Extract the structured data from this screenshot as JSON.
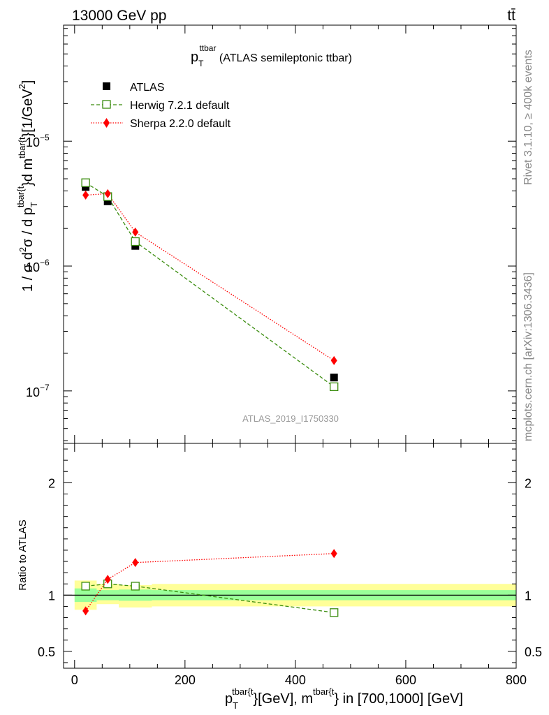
{
  "header": {
    "left": "13000 GeV pp",
    "right": "tt̄"
  },
  "side_labels": {
    "rivet": "Rivet 3.1.10, ≥ 400k events",
    "mcplots": "mcplots.cern.ch [arXiv:1306.3436]"
  },
  "colors": {
    "data": "#000000",
    "herwig": "#3a8c0e",
    "sherpa": "#ff0000",
    "band_inner": "#99ff99",
    "band_outer": "#ffff99",
    "watermark": "#999999",
    "side_text": "#888888"
  },
  "chart_data": {
    "type": "scatter",
    "title": {
      "main": "p",
      "sub": "T",
      "sup": "ttbar",
      "rest": " (ATLAS semileptonic ttbar)"
    },
    "analysis_tag": "ATLAS_2019_I1750330",
    "xlim": [
      -20,
      800
    ],
    "main_panel": {
      "yscale": "log",
      "ylim": [
        3.8e-08,
        8.5e-05
      ],
      "ylabel": {
        "prefix": "1 / σ d",
        "sup1": "2",
        "mid1": "σ /  d p",
        "sub1": "T",
        "sup2": "tbar{t",
        "mid2": "}d m",
        "sup3": "tbar{t",
        "mid3": "}[1/GeV",
        "sup4": "2",
        "end": "]"
      },
      "ytick_labels": [
        {
          "base": "10",
          "exp": "−5",
          "value": 1e-05
        },
        {
          "base": "10",
          "exp": "−6",
          "value": 1e-06
        },
        {
          "base": "10",
          "exp": "−7",
          "value": 1e-07
        }
      ]
    },
    "ratio_panel": {
      "ylabel": "Ratio to ATLAS",
      "ylim": [
        0.35,
        2.35
      ],
      "ytick_labels": [
        {
          "label": "0.5",
          "value": 0.5
        },
        {
          "label": "1",
          "value": 1.0
        },
        {
          "label": "2",
          "value": 2.0
        }
      ]
    },
    "x_ticks": [
      {
        "label": "0",
        "value": 0
      },
      {
        "label": "200",
        "value": 200
      },
      {
        "label": "400",
        "value": 400
      },
      {
        "label": "600",
        "value": 600
      },
      {
        "label": "800",
        "value": 800
      }
    ],
    "xlabel": {
      "p": "p",
      "sub": "T",
      "sup1": "tbar{t",
      "mid": "}[GeV], m",
      "sup2": "tbar{t",
      "end": "} in [700,1000] [GeV]"
    },
    "legend": {
      "placement": "top-left",
      "entries": [
        "ATLAS",
        "Herwig 7.2.1 default",
        "Sherpa 2.2.0 default"
      ]
    },
    "bins": [
      {
        "lo": 0,
        "hi": 40,
        "x": 20
      },
      {
        "lo": 40,
        "hi": 80,
        "x": 60
      },
      {
        "lo": 80,
        "hi": 140,
        "x": 110
      },
      {
        "lo": 140,
        "hi": 800,
        "x": 470
      }
    ],
    "series": [
      {
        "name": "ATLAS",
        "key": "data",
        "marker": "square",
        "x": [
          20,
          60,
          110,
          470
        ],
        "values": [
          4.3e-06,
          3.3e-06,
          1.45e-06,
          1.28e-07
        ]
      },
      {
        "name": "Herwig 7.2.1 default",
        "key": "herwig",
        "marker": "open-square",
        "line": "dashed",
        "x": [
          20,
          60,
          110,
          470
        ],
        "values": [
          4.65e-06,
          3.6e-06,
          1.57e-06,
          1.08e-07
        ]
      },
      {
        "name": "Sherpa 2.2.0 default",
        "key": "sherpa",
        "marker": "diamond",
        "line": "dotted",
        "x": [
          20,
          60,
          110,
          470
        ],
        "values": [
          3.7e-06,
          3.8e-06,
          1.87e-06,
          1.75e-07
        ]
      }
    ],
    "ratios": [
      {
        "key": "herwig",
        "x": [
          20,
          60,
          110,
          470
        ],
        "values": [
          1.08,
          1.1,
          1.08,
          0.845
        ]
      },
      {
        "key": "sherpa",
        "x": [
          20,
          60,
          110,
          470
        ],
        "values": [
          0.86,
          1.14,
          1.29,
          1.37
        ]
      }
    ],
    "uncertainty_band": {
      "inner": [
        {
          "lo": 0,
          "hi": 40,
          "down": 0.94,
          "up": 1.06
        },
        {
          "lo": 40,
          "hi": 80,
          "down": 0.955,
          "up": 1.045
        },
        {
          "lo": 80,
          "hi": 140,
          "down": 0.95,
          "up": 1.05
        },
        {
          "lo": 140,
          "hi": 800,
          "down": 0.955,
          "up": 1.045
        }
      ],
      "outer": [
        {
          "lo": 0,
          "hi": 40,
          "down": 0.87,
          "up": 1.13
        },
        {
          "lo": 40,
          "hi": 80,
          "down": 0.92,
          "up": 1.1
        },
        {
          "lo": 80,
          "hi": 140,
          "down": 0.89,
          "up": 1.09
        },
        {
          "lo": 140,
          "hi": 800,
          "down": 0.9,
          "up": 1.1
        }
      ]
    }
  }
}
